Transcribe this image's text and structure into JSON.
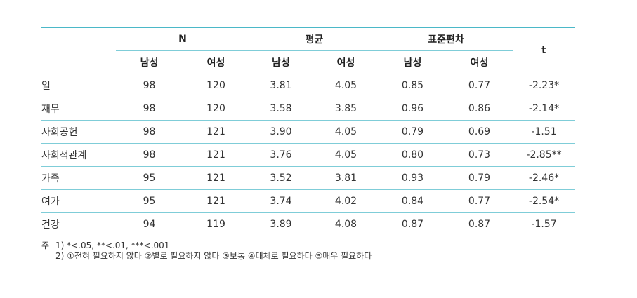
{
  "table": {
    "headers": {
      "group_n": "N",
      "group_mean": "평균",
      "group_sd": "표준편차",
      "t": "t",
      "male": "남성",
      "female": "여성"
    },
    "rows": [
      {
        "label": "일",
        "n_m": "98",
        "n_f": "120",
        "mean_m": "3.81",
        "mean_f": "4.05",
        "sd_m": "0.85",
        "sd_f": "0.77",
        "t": "-2.23*"
      },
      {
        "label": "재무",
        "n_m": "98",
        "n_f": "120",
        "mean_m": "3.58",
        "mean_f": "3.85",
        "sd_m": "0.96",
        "sd_f": "0.86",
        "t": "-2.14*"
      },
      {
        "label": "사회공헌",
        "n_m": "98",
        "n_f": "121",
        "mean_m": "3.90",
        "mean_f": "4.05",
        "sd_m": "0.79",
        "sd_f": "0.69",
        "t": "-1.51"
      },
      {
        "label": "사회적관계",
        "n_m": "98",
        "n_f": "121",
        "mean_m": "3.76",
        "mean_f": "4.05",
        "sd_m": "0.80",
        "sd_f": "0.73",
        "t": "-2.85**"
      },
      {
        "label": "가족",
        "n_m": "95",
        "n_f": "121",
        "mean_m": "3.52",
        "mean_f": "3.81",
        "sd_m": "0.93",
        "sd_f": "0.79",
        "t": "-2.46*"
      },
      {
        "label": "여가",
        "n_m": "95",
        "n_f": "121",
        "mean_m": "3.74",
        "mean_f": "4.02",
        "sd_m": "0.84",
        "sd_f": "0.77",
        "t": "-2.54*"
      },
      {
        "label": "건강",
        "n_m": "94",
        "n_f": "119",
        "mean_m": "3.89",
        "mean_f": "4.08",
        "sd_m": "0.87",
        "sd_f": "0.87",
        "t": "-1.57"
      }
    ]
  },
  "notes": {
    "prefix": "주",
    "line1": "1) *<.05, **<.01, ***<.001",
    "line2": "2) ①전혀 필요하지 않다 ②별로 필요하지 않다  ③보통 ④대체로 필요하다 ⑤매우 필요하다"
  }
}
